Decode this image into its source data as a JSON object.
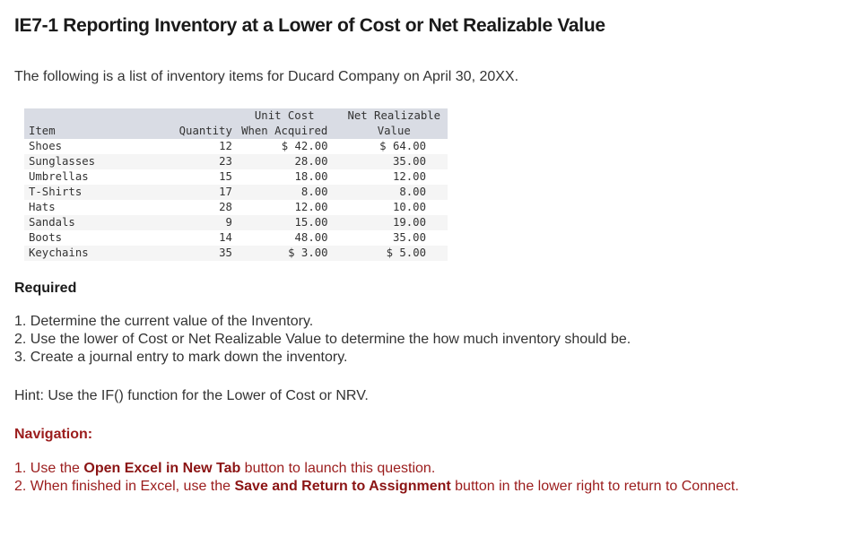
{
  "header": {
    "title": "IE7-1 Reporting Inventory at a Lower of Cost or Net Realizable Value"
  },
  "intro": "The following is a list of inventory items for Ducard Company on April 30, 20XX.",
  "table": {
    "headers": {
      "item": "Item",
      "quantity": "Quantity",
      "cost_line1": "Unit Cost",
      "cost_line2": "When Acquired",
      "nrv_line1": "Net Realizable",
      "nrv_line2": "Value"
    },
    "rows": [
      {
        "item": "Shoes",
        "quantity": "12",
        "cost": "$ 42.00",
        "nrv": "$ 64.00"
      },
      {
        "item": "Sunglasses",
        "quantity": "23",
        "cost": "28.00",
        "nrv": "35.00"
      },
      {
        "item": "Umbrellas",
        "quantity": "15",
        "cost": "18.00",
        "nrv": "12.00"
      },
      {
        "item": "T-Shirts",
        "quantity": "17",
        "cost": "8.00",
        "nrv": "8.00"
      },
      {
        "item": "Hats",
        "quantity": "28",
        "cost": "12.00",
        "nrv": "10.00"
      },
      {
        "item": "Sandals",
        "quantity": "9",
        "cost": "15.00",
        "nrv": "19.00"
      },
      {
        "item": "Boots",
        "quantity": "14",
        "cost": "48.00",
        "nrv": "35.00"
      },
      {
        "item": "Keychains",
        "quantity": "35",
        "cost": "$ 3.00",
        "nrv": "$ 5.00"
      }
    ]
  },
  "required": {
    "heading": "Required",
    "items": [
      "1. Determine the current value of the Inventory.",
      "2. Use the lower of Cost or Net Realizable Value to determine the how much inventory should be.",
      "3. Create a journal entry to mark down the inventory."
    ],
    "hint": "Hint: Use the IF() function for the Lower of Cost or NRV."
  },
  "navigation": {
    "heading": "Navigation:",
    "items": [
      {
        "prefix": "1. Use the ",
        "bold": "Open Excel in New Tab",
        "suffix": " button to launch this question."
      },
      {
        "prefix": "2. When finished in Excel, use the ",
        "bold": "Save and Return to Assignment",
        "suffix": " button in the lower right to return to Connect."
      }
    ]
  },
  "colors": {
    "header_bg": "#d9dce4",
    "stripe_bg": "#f5f5f5",
    "navigation_text": "#9b1c1c"
  }
}
